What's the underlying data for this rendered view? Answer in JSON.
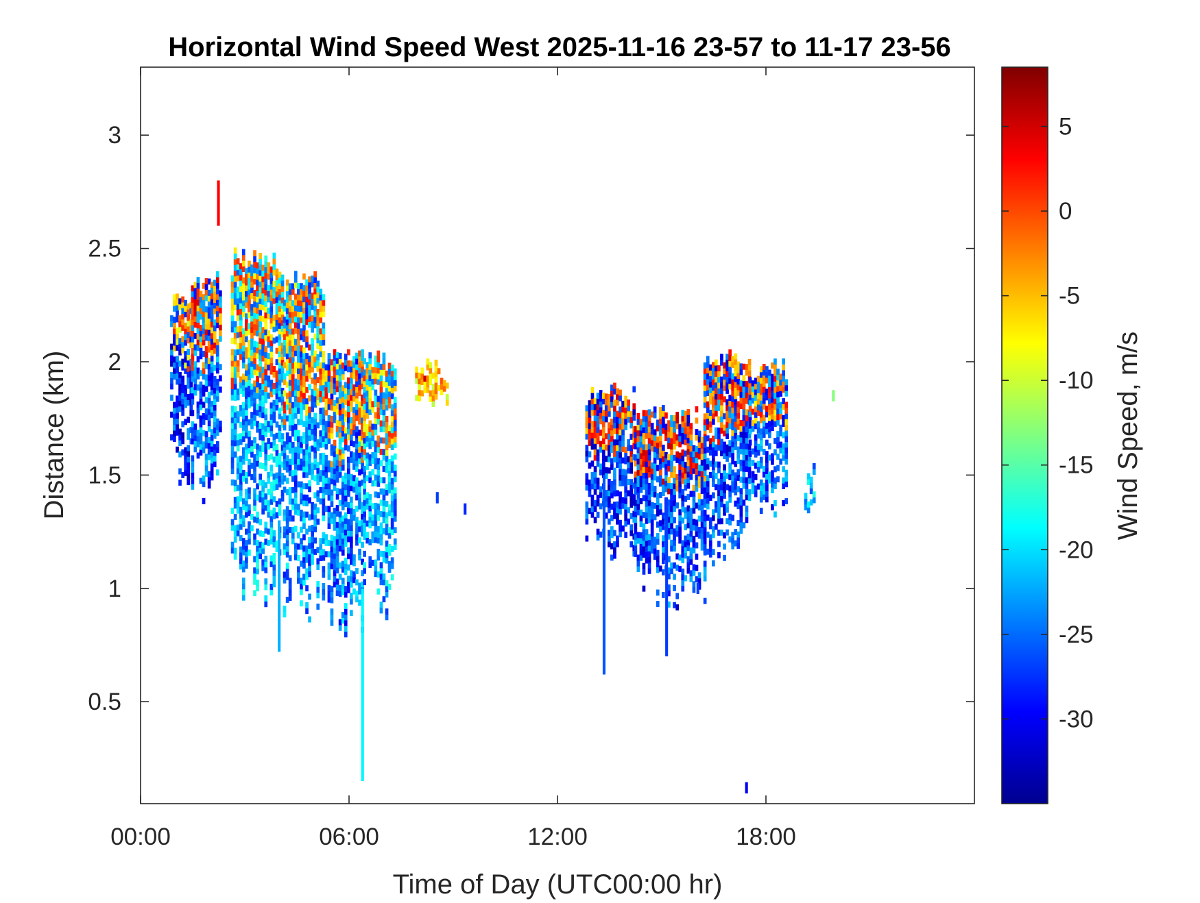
{
  "chart_data": {
    "type": "heatmap",
    "title": "Horizontal Wind Speed West 2025-11-16 23-57 to 11-17 23-56",
    "xlabel": "Time of Day (UTC00:00 hr)",
    "ylabel": "Distance (km)",
    "colorbar_label": "Wind Speed, m/s",
    "x_unit": "hours",
    "xlim": [
      0,
      24
    ],
    "ylim": [
      0.05,
      3.3
    ],
    "x_ticks": [
      0,
      6,
      12,
      18
    ],
    "x_tick_labels": [
      "00:00",
      "06:00",
      "12:00",
      "18:00"
    ],
    "y_ticks": [
      0.5,
      1,
      1.5,
      2,
      2.5,
      3
    ],
    "y_tick_labels": [
      "0.5",
      "1",
      "1.5",
      "2",
      "2.5",
      "3"
    ],
    "colorbar_range": [
      -35,
      8.5
    ],
    "colorbar_ticks": [
      5,
      0,
      -5,
      -10,
      -15,
      -20,
      -25,
      -30
    ],
    "colorbar_tick_labels": [
      "5",
      "0",
      "-5",
      "-10",
      "-15",
      "-20",
      "-25",
      "-30"
    ],
    "colormap": "jet",
    "grid": false,
    "clusters": [
      {
        "x": [
          0.85,
          1.45
        ],
        "y_bottom": 1.4,
        "y_top": 2.3,
        "v_low": -30,
        "v_high": 2
      },
      {
        "x": [
          1.45,
          2.3
        ],
        "y_bottom": 1.35,
        "y_top": 2.4,
        "v_low": -28,
        "v_high": 5
      },
      {
        "x": [
          2.6,
          4.1
        ],
        "y_bottom": 0.9,
        "y_top": 2.5,
        "v_low": -25,
        "v_high": 3
      },
      {
        "x": [
          4.1,
          5.3
        ],
        "y_bottom": 0.85,
        "y_top": 2.4,
        "v_low": -26,
        "v_high": 3
      },
      {
        "x": [
          5.3,
          6.4
        ],
        "y_bottom": 0.75,
        "y_top": 2.05,
        "v_low": -27,
        "v_high": 4
      },
      {
        "x": [
          6.4,
          7.3
        ],
        "y_bottom": 0.85,
        "y_top": 2.05,
        "v_low": -25,
        "v_high": 2
      },
      {
        "x": [
          7.9,
          8.8
        ],
        "y_bottom": 1.8,
        "y_top": 2.0,
        "v_low": -8,
        "v_high": 6
      },
      {
        "x": [
          12.8,
          14.2
        ],
        "y_bottom": 1.1,
        "y_top": 1.9,
        "v_low": -30,
        "v_high": 5
      },
      {
        "x": [
          14.2,
          16.2
        ],
        "y_bottom": 0.9,
        "y_top": 1.8,
        "v_low": -29,
        "v_high": 6
      },
      {
        "x": [
          16.2,
          17.5
        ],
        "y_bottom": 1.05,
        "y_top": 2.05,
        "v_low": -29,
        "v_high": 5
      },
      {
        "x": [
          17.5,
          18.6
        ],
        "y_bottom": 1.3,
        "y_top": 2.0,
        "v_low": -28,
        "v_high": 4
      },
      {
        "x": [
          19.1,
          19.4
        ],
        "y_bottom": 1.3,
        "y_top": 1.55,
        "v_low": -25,
        "v_high": -20
      }
    ],
    "spikes": [
      {
        "x": 2.2,
        "y_bottom": 2.6,
        "y_top": 2.8,
        "v": 3
      },
      {
        "x": 6.35,
        "y_bottom": 0.15,
        "y_top": 1.0,
        "v": -19
      },
      {
        "x": 13.3,
        "y_bottom": 0.62,
        "y_top": 1.5,
        "v": -26
      },
      {
        "x": 15.1,
        "y_bottom": 0.7,
        "y_top": 1.4,
        "v": -27
      },
      {
        "x": 3.95,
        "y_bottom": 0.72,
        "y_top": 1.3,
        "v": -22
      }
    ],
    "isolated_points": [
      {
        "x": 17.4,
        "y": 0.12,
        "v": -30
      },
      {
        "x": 19.9,
        "y": 1.85,
        "v": -13
      },
      {
        "x": 9.3,
        "y": 1.35,
        "v": -28
      },
      {
        "x": 8.5,
        "y": 1.4,
        "v": -27
      },
      {
        "x": 16.0,
        "y": 1.0,
        "v": -27
      }
    ]
  }
}
